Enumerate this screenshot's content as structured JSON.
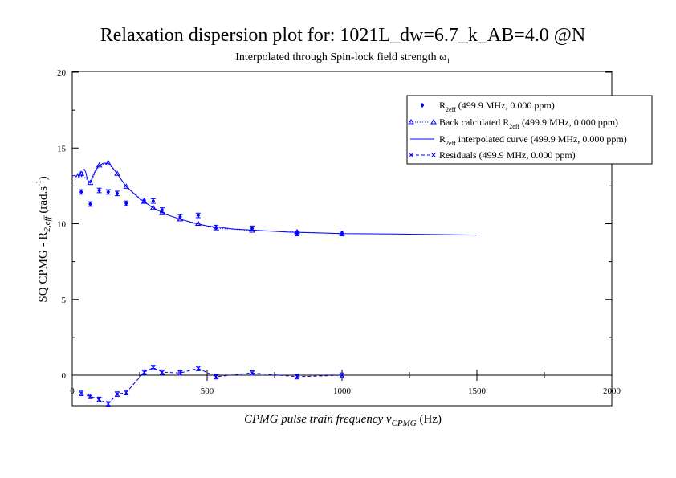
{
  "chart_data": {
    "type": "scatter",
    "title": "Relaxation dispersion plot for: 1021L_dw=6.7_k_AB=4.0 @N",
    "subtitle": "Interpolated through Spin-lock field strength",
    "subtitle_symbol": "ω",
    "subtitle_subscript": "1",
    "xlabel": {
      "main": "CPMG pulse train frequency ν",
      "sub": "CPMG",
      "unit": " (Hz)"
    },
    "ylabel": {
      "prefix": "SQ CPMG - R",
      "sub": "2,eff",
      "unit": " (rad.s",
      "sup": "-1",
      "close": ")"
    },
    "xlim": [
      0,
      2000
    ],
    "ylim": [
      -2,
      20
    ],
    "xticks": [
      0,
      500,
      1000,
      1500,
      2000
    ],
    "xtick_labels": [
      "0",
      "500",
      "1000",
      "1500",
      "2000"
    ],
    "yticks": [
      0,
      5,
      10,
      15,
      20
    ],
    "ytick_labels": [
      "0",
      "5",
      "10",
      "15",
      "20"
    ],
    "grid": false,
    "legend_position": "top-right",
    "color": "#0000ff",
    "series": [
      {
        "name": "R2eff (499.9 MHz, 0.000 ppm)",
        "legend_main": "R",
        "legend_sub": "2eff",
        "legend_rest": " (499.9 MHz, 0.000 ppm)",
        "style": "diamond-errorbar",
        "x": [
          33.3,
          66.7,
          100,
          133.3,
          166.7,
          200,
          266.7,
          300,
          333.3,
          400,
          466.7,
          533.3,
          666.7,
          833.3,
          1000
        ],
        "y": [
          12.1,
          11.3,
          12.2,
          12.1,
          12.0,
          11.35,
          11.55,
          11.5,
          10.9,
          10.45,
          10.55,
          9.75,
          9.7,
          9.35,
          9.35
        ],
        "err": [
          0.15,
          0.15,
          0.15,
          0.15,
          0.15,
          0.15,
          0.15,
          0.15,
          0.15,
          0.15,
          0.15,
          0.15,
          0.15,
          0.15,
          0.15
        ]
      },
      {
        "name": "Back calculated R2eff (499.9 MHz, 0.000 ppm)",
        "legend_main": "Back calculated R",
        "legend_sub": "2eff",
        "legend_rest": " (499.9 MHz, 0.000 ppm)",
        "style": "triangle-dotted",
        "x": [
          33.3,
          66.7,
          100,
          133.3,
          166.7,
          200,
          266.7,
          300,
          333.3,
          400,
          466.7,
          533.3,
          666.7,
          833.3,
          1000
        ],
        "y": [
          13.3,
          12.7,
          13.85,
          14.0,
          13.3,
          12.45,
          11.45,
          11.05,
          10.7,
          10.3,
          10.0,
          9.7,
          9.55,
          9.45,
          9.35
        ]
      },
      {
        "name": "R2eff interpolated curve (499.9 MHz, 0.000 ppm)",
        "legend_main": "R",
        "legend_sub": "2eff",
        "legend_rest": " interpolated curve (499.9 MHz, 0.000 ppm)",
        "style": "solid-line",
        "x": [
          0,
          10,
          15,
          20,
          25,
          30,
          35,
          40,
          45,
          50,
          55,
          60,
          66.7,
          75,
          85,
          100,
          115,
          133.3,
          150,
          166.7,
          200,
          250,
          300,
          350,
          400,
          450,
          500,
          600,
          700,
          800,
          900,
          1000,
          1200,
          1400,
          1500
        ],
        "y": [
          13.15,
          13.2,
          13.1,
          13.3,
          13.0,
          13.4,
          13.1,
          13.5,
          13.6,
          13.4,
          13.0,
          12.8,
          12.7,
          13.1,
          13.5,
          13.85,
          14.0,
          14.0,
          13.7,
          13.3,
          12.45,
          11.65,
          11.05,
          10.6,
          10.3,
          10.05,
          9.85,
          9.65,
          9.55,
          9.45,
          9.4,
          9.35,
          9.32,
          9.28,
          9.25
        ]
      },
      {
        "name": "Residuals (499.9 MHz, 0.000 ppm)",
        "legend_main": "Residuals (499.9 MHz, 0.000 ppm)",
        "legend_sub": "",
        "legend_rest": "",
        "style": "x-dashed-errorbar",
        "x": [
          33.3,
          66.7,
          100,
          133.3,
          166.7,
          200,
          266.7,
          300,
          333.3,
          400,
          466.7,
          533.3,
          666.7,
          833.3,
          1000
        ],
        "y": [
          -1.2,
          -1.4,
          -1.6,
          -1.9,
          -1.25,
          -1.15,
          0.2,
          0.5,
          0.2,
          0.15,
          0.45,
          -0.1,
          0.15,
          -0.1,
          0.0
        ],
        "err": [
          0.15,
          0.15,
          0.15,
          0.15,
          0.15,
          0.15,
          0.15,
          0.15,
          0.15,
          0.15,
          0.15,
          0.15,
          0.15,
          0.15,
          0.15
        ]
      }
    ]
  }
}
